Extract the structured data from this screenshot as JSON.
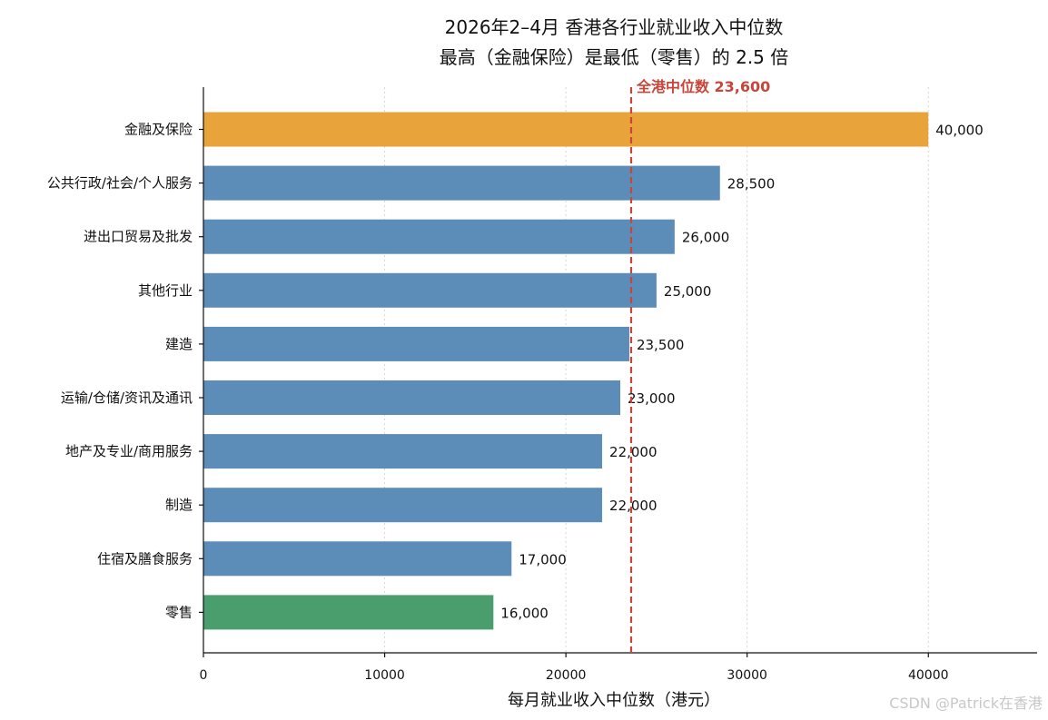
{
  "chart_data": {
    "type": "bar",
    "orientation": "horizontal",
    "title_line1": "2026年2–4月 香港各行业就业收入中位数",
    "title_line2": "最高（金融保险）是最低（零售）的 2.5 倍",
    "xlabel": "每月就业收入中位数（港元）",
    "ylabel": "",
    "xlim": [
      0,
      46000
    ],
    "xticks": [
      0,
      10000,
      20000,
      30000,
      40000
    ],
    "grid": "vertical-dotted",
    "categories": [
      "金融及保险",
      "公共行政/社会/个人服务",
      "进出口贸易及批发",
      "其他行业",
      "建造",
      "运输/仓储/资讯及通讯",
      "地产及专业/商用服务",
      "制造",
      "住宿及膳食服务",
      "零售"
    ],
    "values": [
      40000,
      28500,
      26000,
      25000,
      23500,
      23000,
      22000,
      22000,
      17000,
      16000
    ],
    "value_labels": [
      "40,000",
      "28,500",
      "26,000",
      "25,000",
      "23,500",
      "23,000",
      "22,000",
      "22,000",
      "17,000",
      "16,000"
    ],
    "bar_colors": [
      "#E8A33A",
      "#5B8DB8",
      "#5B8DB8",
      "#5B8DB8",
      "#5B8DB8",
      "#5B8DB8",
      "#5B8DB8",
      "#5B8DB8",
      "#5B8DB8",
      "#4A9E6E"
    ],
    "reference_line": {
      "value": 23600,
      "label": "全港中位数 23,600",
      "color": "#C8453A"
    }
  },
  "watermark": "CSDN @Patrick在香港"
}
